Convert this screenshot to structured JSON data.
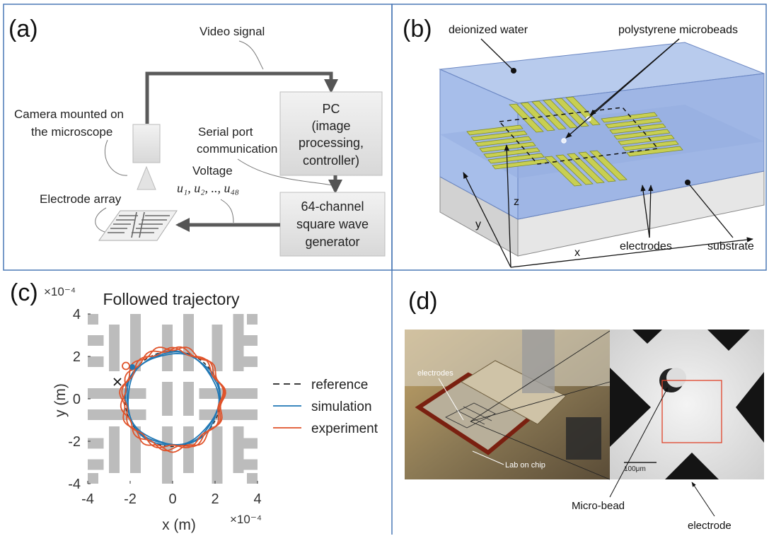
{
  "panel_a": {
    "tag": "(a)",
    "video_signal": "Video signal",
    "camera_line1": "Camera mounted on",
    "camera_line2": "the microscope",
    "pc_line1": "PC",
    "pc_line2": "(image",
    "pc_line3": "processing,",
    "pc_line4": "controller)",
    "serial_line1": "Serial port",
    "serial_line2": "communication",
    "voltage": "Voltage",
    "voltage_symbols": "u₁, u₂, .., u₄₈",
    "electrode_array": "Electrode array",
    "gen_line1": "64-channel",
    "gen_line2": "square wave",
    "gen_line3": "generator"
  },
  "panel_b": {
    "tag": "(b)",
    "deionized_water": "deionized water",
    "microbeads": "polystyrene microbeads",
    "axis_z": "z",
    "axis_y": "y",
    "axis_x": "x",
    "electrodes": "electrodes",
    "substrate": "substrate"
  },
  "panel_c": {
    "tag": "(c)",
    "title": "Followed trajectory",
    "ylabel": "y (m)",
    "xlabel": "x (m)",
    "y_exponent": "×10⁻⁴",
    "x_exponent": "×10⁻⁴",
    "legend": [
      {
        "label": "reference",
        "color": "#222222",
        "dash": true
      },
      {
        "label": "simulation",
        "color": "#1f77b4",
        "dash": false
      },
      {
        "label": "experiment",
        "color": "#e0532a",
        "dash": false
      }
    ]
  },
  "panel_d": {
    "tag": "(d)",
    "electrodes": "electrodes",
    "lab_on_chip": "Lab on chip",
    "scale": "100μm",
    "micro_bead": "Micro-bead",
    "electrode": "electrode"
  },
  "chart_data": {
    "type": "line",
    "title": "Followed trajectory",
    "xlabel": "x (m)",
    "ylabel": "y (m)",
    "x_multiplier": "×10⁻⁴",
    "y_multiplier": "×10⁻⁴",
    "xlim": [
      -4,
      4
    ],
    "ylim": [
      -4,
      4
    ],
    "x_ticks": [
      -4,
      -2,
      0,
      2,
      4
    ],
    "y_ticks": [
      -4,
      -2,
      0,
      2,
      4
    ],
    "legend_position": "right",
    "start_marker": {
      "x": -2.6,
      "y": 0.8
    },
    "series": [
      {
        "name": "reference",
        "shape": "circle",
        "center": [
          0,
          0
        ],
        "radius": 2.25
      },
      {
        "name": "simulation",
        "shape": "circle",
        "center": [
          0,
          0
        ],
        "radius": 2.22
      },
      {
        "name": "experiment",
        "shape": "circle",
        "center": [
          0,
          0
        ],
        "radius": 2.3
      }
    ]
  }
}
